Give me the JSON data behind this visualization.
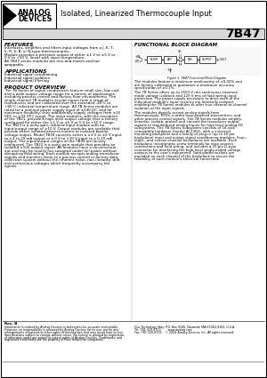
{
  "title_product": "Isolated, Linearized Thermocouple Input",
  "part_number": "7B47",
  "background_color": "#ffffff",
  "border_color": "#000000",
  "pn_bg": "#d8d8d8",
  "features_title": "FEATURES",
  "features_text": "Interfaces, amplifies and filters input voltages from a J, K, T,\nE, R, S, B, or N-type thermocouples.\nModule provides a precision output of either ±1 V to ±5 V or\n0 V to +10 V, linear with input temperature.\nAll 7B47 series modules are mix-and-match and hot\nswappable.",
  "applications_title": "APPLICATIONS",
  "applications_text": "Industrial signal conditioning\nIndustrial signal isolation\nIndustrial signal filtering",
  "product_overview_title": "PRODUCT OVERVIEW",
  "product_overview_text": "The 7B Series of signal conditioners feature small size, low cost\nand a wide output voltage range for a variety of applications,\nincluding process control and factory floor environments. The\nsingle-channel 7B modules accept inputs from a range of\ntransducers and are calibrated over the extended -40°C to\n+85°C industrial temperature range. All 7B Series modules are\nrated for a nominal power supply input of ±24V DC, and for\nmaximum flexibility, they additionally supply voltages from ±15\nVDC to ±33 VDC range. The input modules, with the exception\nof the 7B21, provide a high-level output voltage that is factory\nconfigured for either the ±1 V to ±5 V or 0 V to +10 V range.\nThe 7B23 is a unity gain, isolated input module with an\ninput/output range of ±10 V. Output modules are available that\nprovide either isolated process current or isolated bipolar\nvoltage output. Model 7B39 converts either a ±3 V to ±5 V input\nto a 4 to 20 mA output or a 0 V to +10 V input to a 0-20 mA\noutput. The input/output ranges of the 7B39 are factory\nconfigured. The 7B22 is a unity gain module that provides an\nisolated ±10V output signal. All modules have a universal pin-\nout and may be readily hot-swapped under full power without\ndisrupting field wiring. Each module accepts analog transducer\nsignals and transfers them to a process control or factory data\ncollection system without the inherent noise, non-linearity, drift\nand extraneous voltages which frequently accompany the\nsignals.",
  "block_diagram_title": "FUNCTIONAL BLOCK DIAGRAM",
  "body_text_right": "The modules feature a maximum nonlinearity of ±0.02% and\nare factory calibrated to guarantee a maximum accuracy\nspecification of ±0.1%.\n\nThe 7B Series offers up to 1500 V rms continuous common\nmode voltage isolation and 120 V rms of field wiring input\nprotection. The power supply necessary to drive each of the\nindividual module's input circuitry are internally isolated,\nenabling the 7B Series modules to offer true channel-to-channel\nisolation of the input signals.\n\nThe modules directly accept analog signals from\nthermocouple, RTDs, current loop-powered transmitters, and\nother process control signals. The 7B Series modules amplify,\nlinearize, isolate, protect and convert the transducer output\nsignals to standardized analog inputs for high-level analog I/O\nsubsystems. The 7B Series Subsystem consists of 16-rack\ncompatible hardware (model AC1365), with a universal\nmounting backplane and a family of plug-in (up to 16 per\nbackplane) input and output signal conditioning modules. Four-,\neight-, and sixteen-channel backplanes are available. Each\nbackplane incorporates screw terminals for easy process\nconnections and field wiring, and includes a 25-pin D-type\nconnector for interfacing the high level single-ended voltage\noutputs to the user's equipment. Gold-plated sockets are\nprovided on each channel of the backplane to ensure the\nreliability of each module's electrical connection.",
  "footer_rev": "Rev. B",
  "footer_disclaimer": "Information furnished by Analog Devices is believed to be accurate and reliable.\nHowever, no responsibility is assumed by Analog Devices for its use, nor for any\ninfringements of patents or other rights of third parties that may result from its use.\nSpecifications subject to change without notice. No license is granted by implication\nor otherwise under any patent or patent rights of Analog Devices. Trademarks and\nregistered trademarks are the property of their respective companies.",
  "footer_address": "One Technology Way, P.O. Box 9106, Norwood, MA 02062-9106, U.S.A.\nTel: 781.329.4700        www.analog.com\nFax: 781.326.8703    © 2004 Analog Devices, Inc. All rights reserved."
}
